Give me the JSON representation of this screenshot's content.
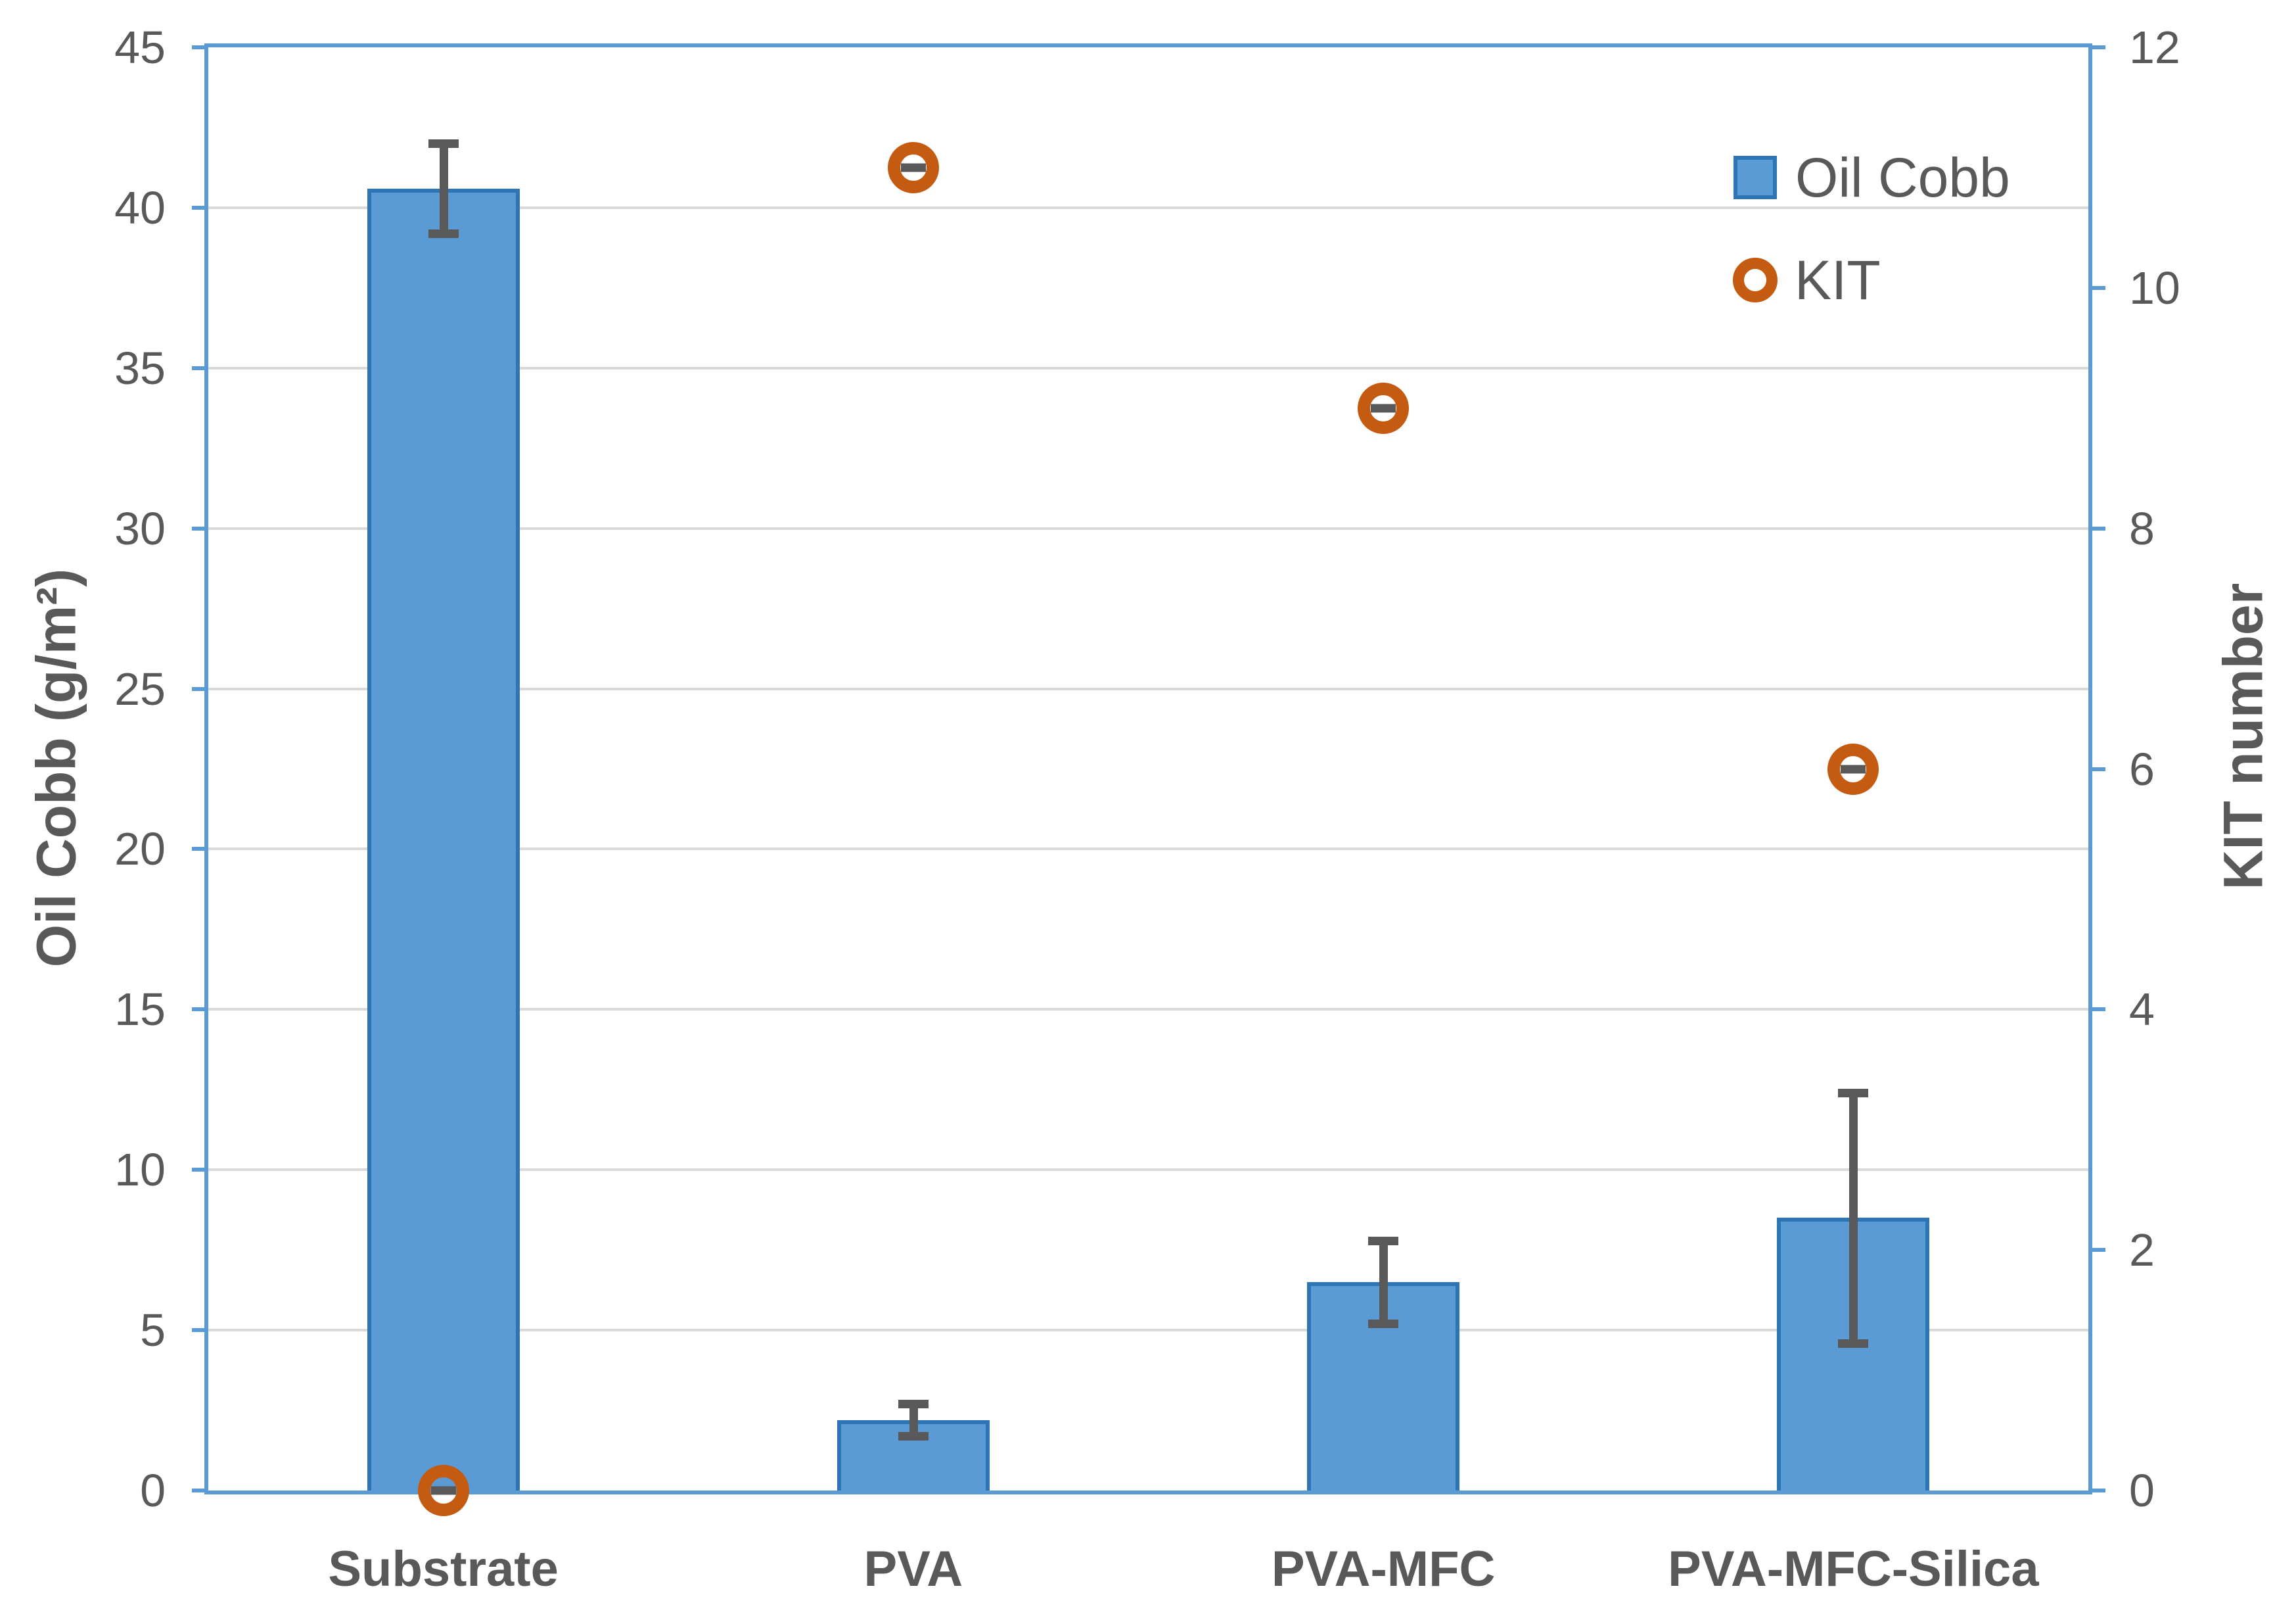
{
  "chart_data": {
    "type": "bar",
    "subtype": "dual-axis bar + scatter",
    "categories": [
      "Substrate",
      "PVA",
      "PVA-MFC",
      "PVA-MFC-Silica"
    ],
    "series": [
      {
        "name": "Oil Cobb",
        "type": "bar",
        "axis": "left",
        "values": [
          40.6,
          2.2,
          6.5,
          8.5
        ],
        "error_bars": [
          1.4,
          0.5,
          1.3,
          3.9
        ]
      },
      {
        "name": "KIT",
        "type": "scatter",
        "axis": "right",
        "marker": "open-circle",
        "values": [
          0,
          11,
          9,
          6
        ]
      }
    ],
    "left_axis": {
      "title": "Oil Cobb (g/m²)",
      "min": 0,
      "max": 45,
      "step": 5
    },
    "right_axis": {
      "title": "KIT number",
      "min": 0,
      "max": 12,
      "step": 2
    },
    "grid": "horizontal, from left axis major ticks",
    "legend_position": "inside top-right",
    "colors": {
      "bar_fill": "#5B9BD5",
      "bar_border": "#2E75B6",
      "frame": "#5B9BD5",
      "gridline": "#D9D9D9",
      "error_bar": "#595959",
      "kit_marker": "#C55A11",
      "text": "#595959"
    }
  },
  "legend": {
    "oil_cobb_label": "Oil Cobb",
    "kit_label": "KIT"
  }
}
